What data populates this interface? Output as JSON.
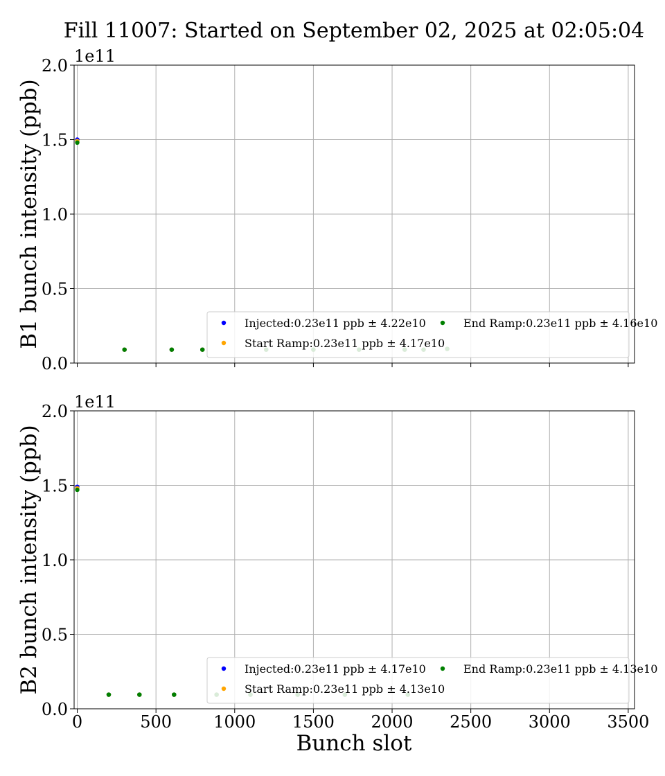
{
  "title": "Fill 11007: Started on September 02, 2025 at 02:05:04",
  "xlabel": "Bunch slot",
  "colors": {
    "injected": "#0000ff",
    "start_ramp": "#ffa500",
    "end_ramp": "#008000",
    "grid": "#b0b0b0"
  },
  "chart_data": [
    {
      "type": "scatter",
      "ylabel": "B1 bunch intensity (ppb)",
      "y_offset_label": "1e11",
      "xlim": [
        -20,
        3540
      ],
      "ylim": [
        0,
        2.0
      ],
      "x_ticks": [
        "0",
        "500",
        "1000",
        "1500",
        "2000",
        "2500",
        "3000",
        "3500"
      ],
      "y_ticks": [
        "0.0",
        "0.5",
        "1.0",
        "1.5",
        "2.0"
      ],
      "grid": true,
      "legend_position": "lower-right",
      "legend": [
        {
          "label": "Injected:0.23e11 ppb ± 4.22e10",
          "color_key": "injected"
        },
        {
          "label": "Start Ramp:0.23e11 ppb ± 4.17e10",
          "color_key": "start_ramp"
        },
        {
          "label": "End Ramp:0.23e11 ppb ± 4.16e10",
          "color_key": "end_ramp"
        }
      ],
      "series": [
        {
          "name": "Injected",
          "color_key": "injected",
          "x": [
            0,
            300,
            600,
            795,
            1200,
            1500,
            1790,
            2080,
            2200,
            2350
          ],
          "y": [
            1.5,
            0.09,
            0.09,
            0.09,
            0.09,
            0.09,
            0.09,
            0.09,
            0.09,
            0.095
          ]
        },
        {
          "name": "Start Ramp",
          "color_key": "start_ramp",
          "x": [
            0,
            300,
            600,
            795,
            1200,
            1500,
            1790,
            2080,
            2200,
            2350
          ],
          "y": [
            1.49,
            0.09,
            0.09,
            0.09,
            0.09,
            0.09,
            0.09,
            0.09,
            0.09,
            0.095
          ]
        },
        {
          "name": "End Ramp",
          "color_key": "end_ramp",
          "x": [
            0,
            300,
            600,
            795,
            1200,
            1500,
            1790,
            2080,
            2200,
            2350
          ],
          "y": [
            1.48,
            0.09,
            0.09,
            0.09,
            0.09,
            0.09,
            0.09,
            0.09,
            0.09,
            0.095
          ]
        }
      ]
    },
    {
      "type": "scatter",
      "ylabel": "B2 bunch intensity (ppb)",
      "y_offset_label": "1e11",
      "xlim": [
        -20,
        3540
      ],
      "ylim": [
        0,
        2.0
      ],
      "x_ticks": [
        "0",
        "500",
        "1000",
        "1500",
        "2000",
        "2500",
        "3000",
        "3500"
      ],
      "y_ticks": [
        "0.0",
        "0.5",
        "1.0",
        "1.5",
        "2.0"
      ],
      "grid": true,
      "legend_position": "lower-right",
      "legend": [
        {
          "label": "Injected:0.23e11 ppb ± 4.17e10",
          "color_key": "injected"
        },
        {
          "label": "Start Ramp:0.23e11 ppb ± 4.13e10",
          "color_key": "start_ramp"
        },
        {
          "label": "End Ramp:0.23e11 ppb ± 4.13e10",
          "color_key": "end_ramp"
        }
      ],
      "series": [
        {
          "name": "Injected",
          "color_key": "injected",
          "x": [
            0,
            200,
            395,
            615,
            885,
            1100,
            1400,
            1700,
            2100
          ],
          "y": [
            1.49,
            0.095,
            0.095,
            0.095,
            0.095,
            0.095,
            0.095,
            0.095,
            0.095
          ]
        },
        {
          "name": "Start Ramp",
          "color_key": "start_ramp",
          "x": [
            0,
            200,
            395,
            615,
            885,
            1100,
            1400,
            1700,
            2100
          ],
          "y": [
            1.48,
            0.095,
            0.095,
            0.095,
            0.095,
            0.095,
            0.095,
            0.095,
            0.095
          ]
        },
        {
          "name": "End Ramp",
          "color_key": "end_ramp",
          "x": [
            0,
            200,
            395,
            615,
            885,
            1100,
            1400,
            1700,
            2100
          ],
          "y": [
            1.47,
            0.095,
            0.095,
            0.095,
            0.095,
            0.095,
            0.095,
            0.095,
            0.095
          ]
        }
      ]
    }
  ]
}
